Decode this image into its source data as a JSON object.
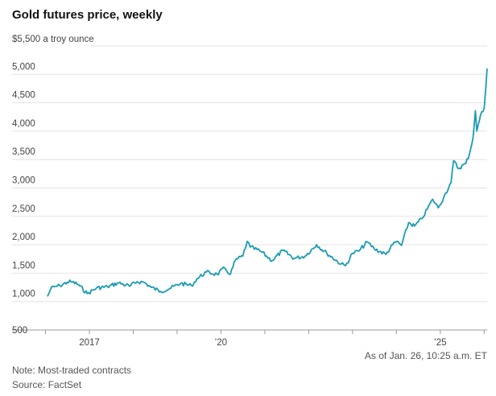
{
  "chart_data": {
    "type": "line",
    "title": "Gold futures price, weekly",
    "unit_label": "$5,500 a troy ounce",
    "ylim": [
      500,
      5500
    ],
    "yticks": [
      1000,
      1500,
      2000,
      2500,
      3000,
      3500,
      4000,
      4500,
      5000
    ],
    "ytick_labels": [
      "1,000",
      "1,500",
      "2,000",
      "2,500",
      "3,000",
      "3,500",
      "4,000",
      "4,500",
      "5,000"
    ],
    "bottom_tick_label": "500",
    "xlim": [
      "2016-01-18",
      "2026-01-26"
    ],
    "xticks": [
      "2017-01-01",
      "2020-01-01",
      "2025-01-01"
    ],
    "xtick_labels": [
      "2017",
      "’20",
      "’25"
    ],
    "minor_xticks": [
      "2016-01-01",
      "2018-01-01",
      "2019-01-01",
      "2021-01-01",
      "2022-01-01",
      "2023-01-01",
      "2024-01-01",
      "2026-01-01"
    ],
    "grid": true,
    "line_color": "#1a9bb3",
    "series": [
      {
        "x": [
          "2016-01-18",
          "2016-02-15",
          "2016-03-15",
          "2016-05-01",
          "2016-07-01",
          "2016-08-01",
          "2016-10-01",
          "2016-12-15",
          "2017-03-01",
          "2017-06-01",
          "2017-09-01",
          "2017-12-01",
          "2018-02-01",
          "2018-04-01",
          "2018-06-01",
          "2018-08-15",
          "2018-11-01",
          "2019-02-01",
          "2019-05-01",
          "2019-06-15",
          "2019-09-01",
          "2019-12-01",
          "2020-02-01",
          "2020-03-20",
          "2020-05-01",
          "2020-07-01",
          "2020-08-07",
          "2020-09-01",
          "2020-12-01",
          "2021-03-01",
          "2021-06-01",
          "2021-09-01",
          "2021-12-01",
          "2022-03-08",
          "2022-06-01",
          "2022-09-28",
          "2022-11-03",
          "2023-01-01",
          "2023-03-01",
          "2023-05-03",
          "2023-07-01",
          "2023-10-06",
          "2023-12-01",
          "2024-01-01",
          "2024-02-14",
          "2024-04-12",
          "2024-06-01",
          "2024-08-01",
          "2024-10-30",
          "2024-12-15",
          "2025-02-01",
          "2025-04-01",
          "2025-04-22",
          "2025-06-01",
          "2025-08-01",
          "2025-09-01",
          "2025-10-01",
          "2025-10-20",
          "2025-11-01",
          "2025-12-01",
          "2026-01-01",
          "2026-01-26"
        ],
        "values": [
          1090,
          1230,
          1260,
          1280,
          1340,
          1350,
          1300,
          1140,
          1240,
          1260,
          1330,
          1270,
          1350,
          1340,
          1250,
          1180,
          1230,
          1320,
          1280,
          1400,
          1520,
          1480,
          1590,
          1480,
          1730,
          1800,
          2060,
          1960,
          1880,
          1720,
          1900,
          1760,
          1800,
          2000,
          1850,
          1660,
          1630,
          1850,
          1900,
          2050,
          1930,
          1830,
          2000,
          2060,
          1990,
          2390,
          2330,
          2460,
          2800,
          2650,
          2850,
          3100,
          3480,
          3340,
          3430,
          3600,
          3900,
          4360,
          4000,
          4270,
          4400,
          5100
        ]
      }
    ]
  },
  "footer": {
    "as_of": "As of Jan. 26, 10:25 a.m. ET",
    "note": "Note: Most-traded contracts",
    "source": "Source: FactSet"
  }
}
